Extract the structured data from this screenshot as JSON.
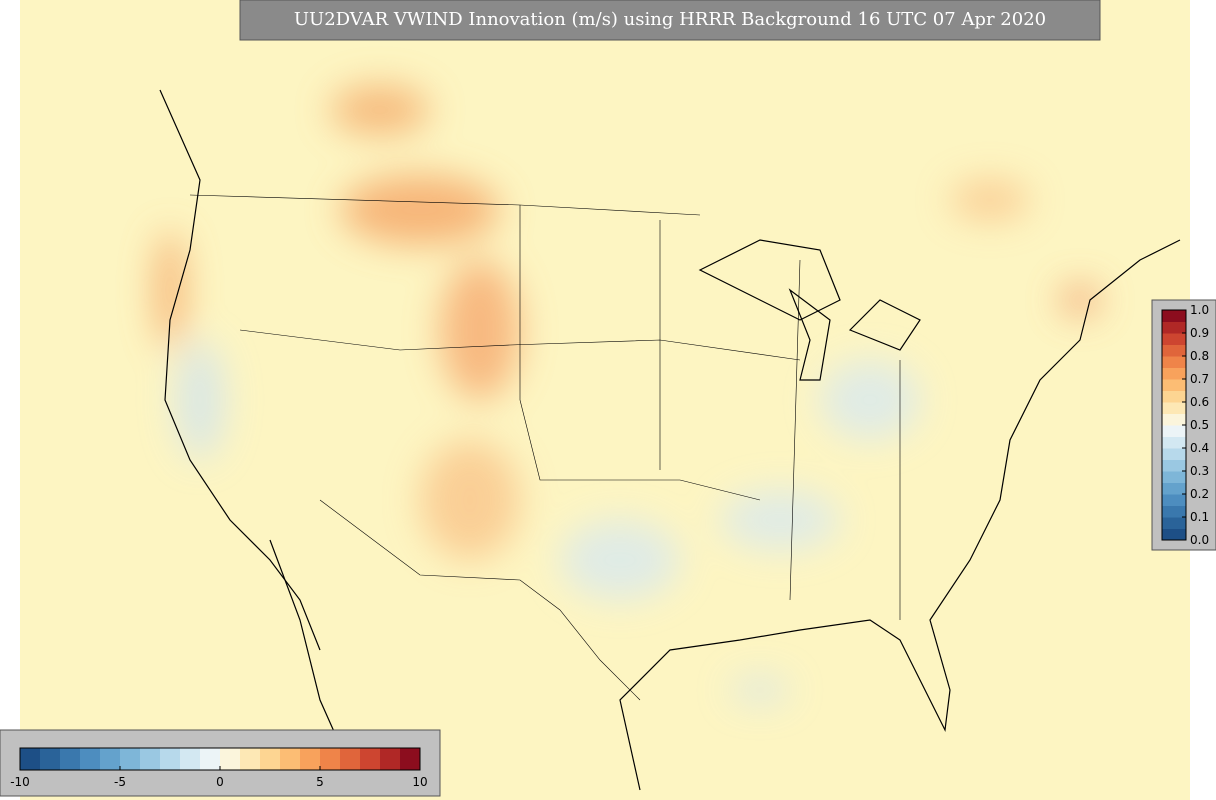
{
  "title": "UU2DVAR VWIND Innovation (m/s) using HRRR Background 16 UTC 07 Apr 2020",
  "colorbars": [
    {
      "orientation": "horizontal",
      "lim": [
        -10,
        10
      ],
      "ticks": [
        -10,
        -5,
        0,
        5,
        10
      ],
      "colors": [
        "#1d4f86",
        "#2a6399",
        "#3a78ad",
        "#4d8dbf",
        "#64a2cc",
        "#7eb6d8",
        "#9ac8e2",
        "#b7d9eb",
        "#d3e8f2",
        "#ecf4f7",
        "#fbf5dc",
        "#fde8b5",
        "#fdd592",
        "#fcbd74",
        "#f8a25c",
        "#ef8449",
        "#e0653b",
        "#cd4530",
        "#b02826",
        "#8c0d1e"
      ]
    },
    {
      "orientation": "vertical",
      "lim": [
        0,
        1
      ],
      "ticks": [
        {
          "value": 0,
          "label": "0.0"
        },
        0.1,
        0.2,
        0.3,
        0.4,
        0.5,
        0.6,
        0.7,
        0.8,
        0.9,
        {
          "value": 1,
          "label": "1.0"
        }
      ],
      "colors": [
        "#1d4f86",
        "#2a6399",
        "#3a78ad",
        "#4d8dbf",
        "#64a2cc",
        "#7eb6d8",
        "#9ac8e2",
        "#b7d9eb",
        "#d3e8f2",
        "#ecf4f7",
        "#fbf5dc",
        "#fde8b5",
        "#fdd592",
        "#fcbd74",
        "#f8a25c",
        "#ef8449",
        "#e0653b",
        "#cd4530",
        "#b02826",
        "#8c0d1e"
      ]
    }
  ]
}
